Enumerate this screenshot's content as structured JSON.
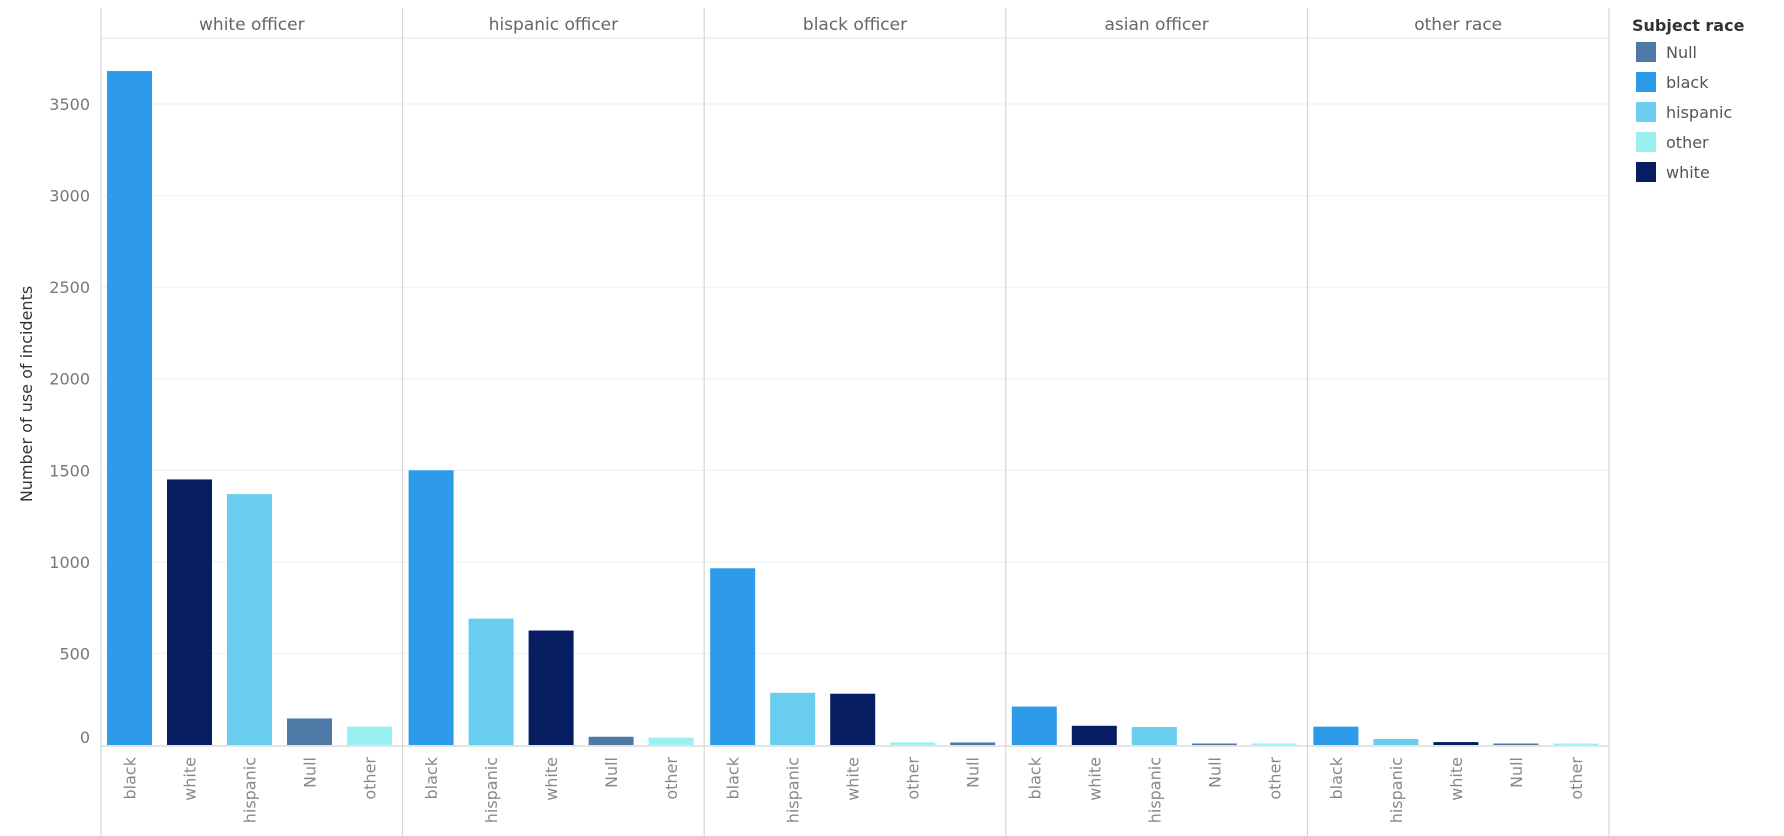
{
  "chart_data": {
    "type": "bar",
    "ylabel": "Number of use of incidents",
    "xlabel": "",
    "ylim": [
      0,
      3800
    ],
    "yticks": [
      0,
      500,
      1000,
      1500,
      2000,
      2500,
      3000,
      3500
    ],
    "grid": true,
    "legend": {
      "title": "Subject race",
      "placement": "right",
      "entries": [
        {
          "label": "Null",
          "color": "#4e79a7"
        },
        {
          "label": "black",
          "color": "#2e9bea"
        },
        {
          "label": "hispanic",
          "color": "#68cdee"
        },
        {
          "label": "other",
          "color": "#98f0f0"
        },
        {
          "label": "white",
          "color": "#061d61"
        }
      ]
    },
    "panels": [
      {
        "title": "white officer",
        "categories": [
          "black",
          "white",
          "hispanic",
          "Null",
          "other"
        ],
        "values": [
          3680,
          1450,
          1370,
          145,
          100
        ]
      },
      {
        "title": "hispanic officer",
        "categories": [
          "black",
          "hispanic",
          "white",
          "Null",
          "other"
        ],
        "values": [
          1500,
          690,
          625,
          45,
          40
        ]
      },
      {
        "title": "black officer",
        "categories": [
          "black",
          "hispanic",
          "white",
          "other",
          "Null"
        ],
        "values": [
          965,
          285,
          280,
          14,
          14
        ]
      },
      {
        "title": "asian officer",
        "categories": [
          "black",
          "white",
          "hispanic",
          "Null",
          "other"
        ],
        "values": [
          210,
          105,
          98,
          8,
          5
        ]
      },
      {
        "title": "other race",
        "categories": [
          "black",
          "hispanic",
          "white",
          "Null",
          "other"
        ],
        "values": [
          100,
          33,
          16,
          8,
          1
        ]
      }
    ]
  }
}
